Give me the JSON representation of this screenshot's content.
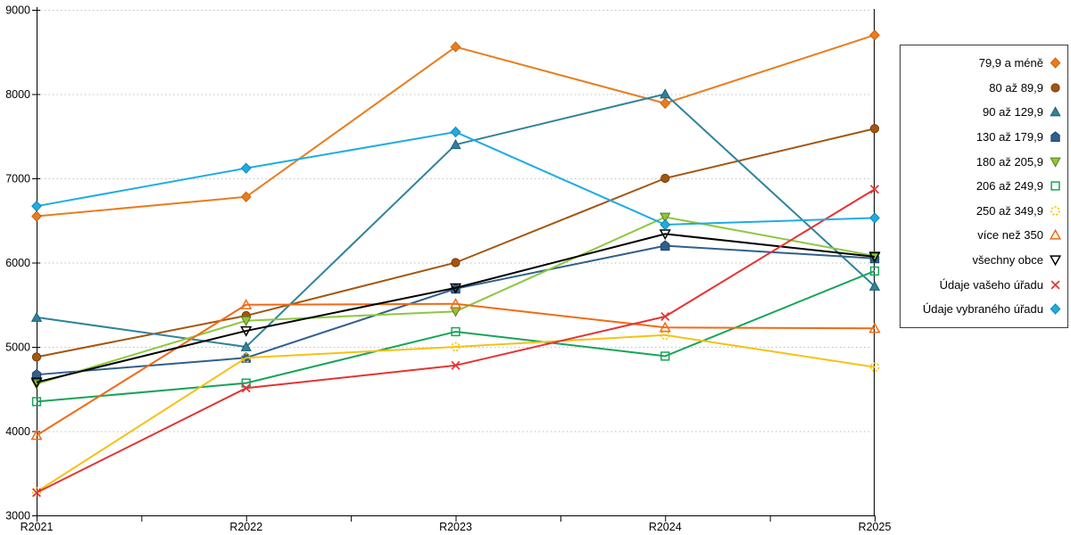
{
  "chart_data": {
    "type": "line",
    "title": "",
    "xlabel": "",
    "ylabel": "",
    "categories": [
      "R2021",
      "R2022",
      "R2023",
      "R2024",
      "R2025"
    ],
    "ylim": [
      3000,
      9000
    ],
    "ytick_labels": [
      "3000",
      "4000",
      "5000",
      "6000",
      "7000",
      "8000",
      "9000"
    ],
    "grid": "horizontal-dotted",
    "grid_color": "#BFBFBF",
    "axis_color": "#000000",
    "background": "#FFFFFF",
    "legend_position": "right",
    "series": [
      {
        "name": "79,9 a méně",
        "color": "#E87D1E",
        "edge": "#C96410",
        "marker": "diamond",
        "values": [
          6550,
          6780,
          8560,
          7890,
          8700
        ]
      },
      {
        "name": "80 až 89,9",
        "color": "#A3560F",
        "edge": "#7A3C08",
        "marker": "circle",
        "values": [
          4880,
          5370,
          6000,
          7000,
          7590
        ]
      },
      {
        "name": "90 až 129,9",
        "color": "#2F839B",
        "edge": "#1F5E70",
        "marker": "triangle-up",
        "values": [
          5350,
          5000,
          7400,
          8000,
          5720
        ]
      },
      {
        "name": "130 až 179,9",
        "color": "#2F5F8C",
        "edge": "#1F4468",
        "marker": "pentagon",
        "values": [
          4670,
          4870,
          5690,
          6200,
          6050
        ]
      },
      {
        "name": "180 až 205,9",
        "color": "#8CC83C",
        "edge": "#567D1C",
        "marker": "triangle-down",
        "values": [
          4560,
          5310,
          5420,
          6540,
          6080
        ]
      },
      {
        "name": "206 až 249,9",
        "color": "#17A45A",
        "edge": "#17A45A",
        "marker": "square-open",
        "values": [
          4350,
          4570,
          5180,
          4890,
          5900
        ]
      },
      {
        "name": "250 až 349,9",
        "color": "#F5C113",
        "edge": "#F5C113",
        "marker": "circle-open",
        "values": [
          3280,
          4870,
          5000,
          5140,
          4760
        ]
      },
      {
        "name": "více než 350",
        "color": "#F26A14",
        "edge": "#F26A14",
        "marker": "triangle-up-open",
        "values": [
          3950,
          5500,
          5510,
          5230,
          5220
        ]
      },
      {
        "name": "všechny obce",
        "color": "#000000",
        "edge": "#000000",
        "marker": "triangle-down-open",
        "values": [
          4580,
          5190,
          5700,
          6340,
          6070
        ]
      },
      {
        "name": "Údaje vašeho úřadu",
        "color": "#E63232",
        "edge": "#E63232",
        "marker": "x",
        "values": [
          3270,
          4510,
          4780,
          5360,
          6870
        ]
      },
      {
        "name": "Údaje vybraného úřadu",
        "color": "#1FACE3",
        "edge": "#0F86B5",
        "marker": "diamond",
        "values": [
          6670,
          7120,
          7550,
          6450,
          6530
        ]
      }
    ]
  }
}
